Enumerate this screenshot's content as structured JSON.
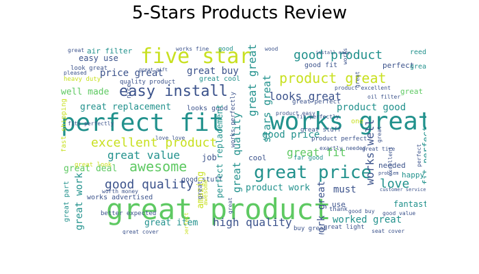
{
  "title": "5-Stars Products Review",
  "colors": {
    "palette": [
      "#440154",
      "#3b528b",
      "#21918c",
      "#5ec962",
      "#fde725"
    ]
  },
  "words": [
    {
      "text": "great product",
      "color": "#5ec962",
      "vertical": false
    },
    {
      "text": "perfect fit",
      "color": "#21918c",
      "vertical": false
    },
    {
      "text": "works great",
      "color": "#21918c",
      "vertical": false
    },
    {
      "text": "five star",
      "color": "#c8e020",
      "vertical": false
    },
    {
      "text": "great price",
      "color": "#21918c",
      "vertical": false
    },
    {
      "text": "easy install",
      "color": "#3b528b",
      "vertical": false
    },
    {
      "text": "good product",
      "color": "#21918c",
      "vertical": false
    },
    {
      "text": "product great",
      "color": "#c8e020",
      "vertical": false
    },
    {
      "text": "awesome",
      "color": "#5ec962",
      "vertical": false
    },
    {
      "text": "excellent product",
      "color": "#c8e020",
      "vertical": false
    },
    {
      "text": "good quality",
      "color": "#3b528b",
      "vertical": false
    },
    {
      "text": "high quality",
      "color": "#3b528b",
      "vertical": false
    },
    {
      "text": "great value",
      "color": "#21918c",
      "vertical": false
    },
    {
      "text": "looks great",
      "color": "#3b528b",
      "vertical": false
    },
    {
      "text": "great fit",
      "color": "#5ec962",
      "vertical": false
    },
    {
      "text": "great buy",
      "color": "#3b528b",
      "vertical": false
    },
    {
      "text": "price great",
      "color": "#3b528b",
      "vertical": false
    },
    {
      "text": "worked great",
      "color": "#21918c",
      "vertical": false
    },
    {
      "text": "great replacement",
      "color": "#21918c",
      "vertical": false
    },
    {
      "text": "love",
      "color": "#21918c",
      "vertical": false
    },
    {
      "text": "good price",
      "color": "#21918c",
      "vertical": false
    },
    {
      "text": "product good",
      "color": "#21918c",
      "vertical": false
    },
    {
      "text": "great item",
      "color": "#21918c",
      "vertical": false
    },
    {
      "text": "product work",
      "color": "#21918c",
      "vertical": false
    },
    {
      "text": "fantastic",
      "color": "#21918c",
      "vertical": false
    },
    {
      "text": "must",
      "color": "#3b528b",
      "vertical": false
    },
    {
      "text": "well made",
      "color": "#5ec962",
      "vertical": false
    },
    {
      "text": "easy use",
      "color": "#3b528b",
      "vertical": false
    },
    {
      "text": "air filter",
      "color": "#21918c",
      "vertical": false
    },
    {
      "text": "great good",
      "color": "#5ec962",
      "vertical": false
    },
    {
      "text": "good fit",
      "color": "#3b528b",
      "vertical": false
    },
    {
      "text": "perfect",
      "color": "#3b528b",
      "vertical": false
    },
    {
      "text": "great",
      "color": "#21918c",
      "vertical": false
    },
    {
      "text": "reed",
      "color": "#21918c",
      "vertical": false
    },
    {
      "text": "happy",
      "color": "#21918c",
      "vertical": false
    },
    {
      "text": "needed",
      "color": "#3b528b",
      "vertical": false
    },
    {
      "text": "great deal",
      "color": "#5ec962",
      "vertical": false
    },
    {
      "text": "job",
      "color": "#3b528b",
      "vertical": false
    },
    {
      "text": "cool",
      "color": "#3b528b",
      "vertical": false
    },
    {
      "text": "use",
      "color": "#3b528b",
      "vertical": false
    },
    {
      "text": "one",
      "color": "#c8e020",
      "vertical": false
    },
    {
      "text": "great look",
      "color": "#c8e020",
      "vertical": false
    },
    {
      "text": "quality product",
      "color": "#3b528b",
      "vertical": false
    },
    {
      "text": "heavy duty",
      "color": "#c8e020",
      "vertical": false
    },
    {
      "text": "look great",
      "color": "#3b528b",
      "vertical": false
    },
    {
      "text": "pleased",
      "color": "#3b528b",
      "vertical": false
    },
    {
      "text": "great cool",
      "color": "#21918c",
      "vertical": false
    },
    {
      "text": "looks good",
      "color": "#3b528b",
      "vertical": false
    },
    {
      "text": "good stuff",
      "color": "#3b528b",
      "vertical": false
    },
    {
      "text": "great stuff",
      "color": "#3b528b",
      "vertical": false
    },
    {
      "text": "great perfect",
      "color": "#3b528b",
      "vertical": false
    },
    {
      "text": "product perfect",
      "color": "#3b528b",
      "vertical": false
    },
    {
      "text": "product excellent",
      "color": "#3b528b",
      "vertical": false
    },
    {
      "text": "product easy",
      "color": "#3b528b",
      "vertical": false
    },
    {
      "text": "far good",
      "color": "#21918c",
      "vertical": false
    },
    {
      "text": "works advertised",
      "color": "#3b528b",
      "vertical": false
    },
    {
      "text": "worth money",
      "color": "#3b528b",
      "vertical": false
    },
    {
      "text": "love love",
      "color": "#3b528b",
      "vertical": false
    },
    {
      "text": "fits perfectly",
      "color": "#3b528b",
      "vertical": false
    },
    {
      "text": "thank",
      "color": "#3b528b",
      "vertical": false
    },
    {
      "text": "exactly needed",
      "color": "#3b528b",
      "vertical": false
    },
    {
      "text": "good buy",
      "color": "#3b528b",
      "vertical": false
    },
    {
      "text": "great light",
      "color": "#3b528b",
      "vertical": false
    },
    {
      "text": "buy great",
      "color": "#3b528b",
      "vertical": false
    },
    {
      "text": "better expected",
      "color": "#3b528b",
      "vertical": false
    },
    {
      "text": "good value",
      "color": "#3b528b",
      "vertical": false
    },
    {
      "text": "great tire",
      "color": "#3b528b",
      "vertical": false
    },
    {
      "text": "oil filter",
      "color": "#3b528b",
      "vertical": false
    },
    {
      "text": "fit perfectly",
      "color": "#3b528b",
      "vertical": false
    },
    {
      "text": "problem",
      "color": "#3b528b",
      "vertical": false
    },
    {
      "text": "customer service",
      "color": "#3b528b",
      "vertical": false
    },
    {
      "text": "good",
      "color": "#21918c",
      "vertical": false
    },
    {
      "text": "wood",
      "color": "#3b528b",
      "vertical": false
    },
    {
      "text": "works fine",
      "color": "#3b528b",
      "vertical": false
    },
    {
      "text": "great gift",
      "color": "#3b528b",
      "vertical": false
    },
    {
      "text": "great",
      "color": "#3b528b",
      "vertical": false
    },
    {
      "text": "install easy",
      "color": "#3b528b",
      "vertical": false
    },
    {
      "text": "seat cover",
      "color": "#3b528b",
      "vertical": false
    },
    {
      "text": "great cover",
      "color": "#3b528b",
      "vertical": false
    },
    {
      "text": "great great",
      "color": "#21918c",
      "vertical": true
    },
    {
      "text": "stars great",
      "color": "#21918c",
      "vertical": true
    },
    {
      "text": "works well",
      "color": "#3b528b",
      "vertical": true
    },
    {
      "text": "work great",
      "color": "#3b528b",
      "vertical": true
    },
    {
      "text": "great work",
      "color": "#21918c",
      "vertical": true
    },
    {
      "text": "great quality",
      "color": "#21918c",
      "vertical": true
    },
    {
      "text": "perfect replacement",
      "color": "#21918c",
      "vertical": true
    },
    {
      "text": "amazing",
      "color": "#c8e020",
      "vertical": true
    },
    {
      "text": "fit perfect",
      "color": "#21918c",
      "vertical": true
    },
    {
      "text": "fast shipping",
      "color": "#c8e020",
      "vertical": true
    },
    {
      "text": "works perfectly",
      "color": "#3b528b",
      "vertical": true
    },
    {
      "text": "nice",
      "color": "#3b528b",
      "vertical": true
    },
    {
      "text": "great part",
      "color": "#21918c",
      "vertical": true
    },
    {
      "text": "great",
      "color": "#3b528b",
      "vertical": true
    },
    {
      "text": "awesome",
      "color": "#c8e020",
      "vertical": true
    },
    {
      "text": "works perfect",
      "color": "#c8e020",
      "vertical": true
    },
    {
      "text": "works",
      "color": "#3b528b",
      "vertical": true
    },
    {
      "text": "great",
      "color": "#3b528b",
      "vertical": true
    },
    {
      "text": "excellent",
      "color": "#3b528b",
      "vertical": true
    },
    {
      "text": "great",
      "color": "#3b528b",
      "vertical": true
    },
    {
      "text": "perfect",
      "color": "#3b528b",
      "vertical": true
    },
    {
      "text": "great",
      "color": "#3b528b",
      "vertical": true
    }
  ]
}
